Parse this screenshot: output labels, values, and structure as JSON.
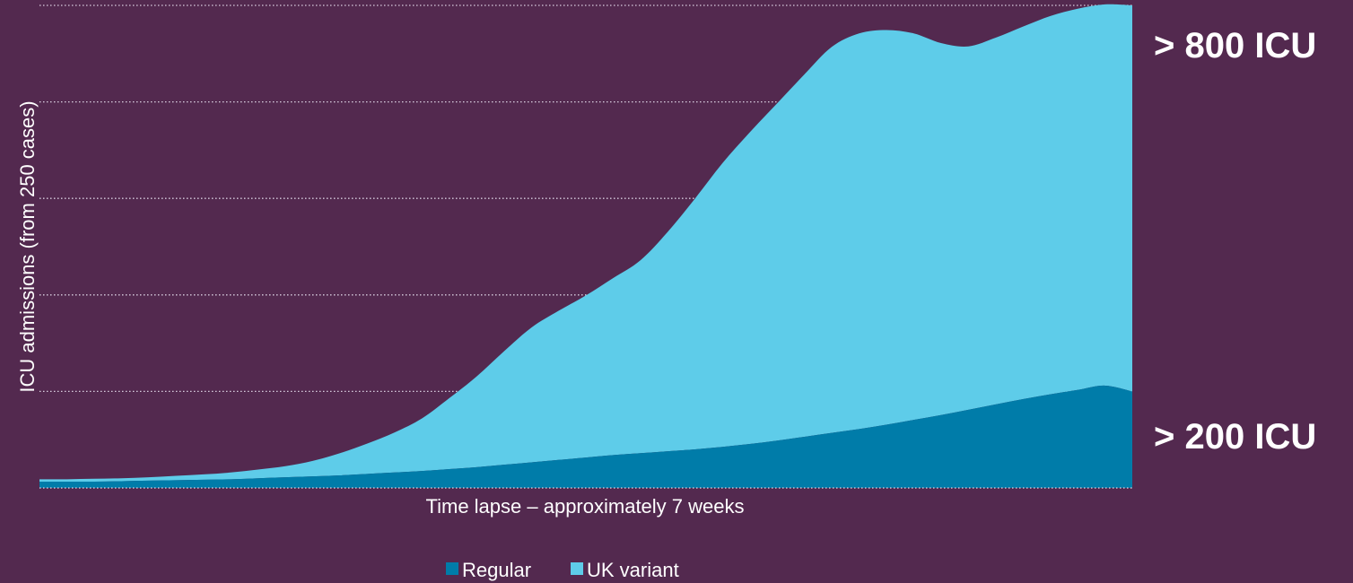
{
  "colors": {
    "background": "#53294f",
    "regular": "#007ca9",
    "uk_variant": "#5ecce9",
    "text": "#ffffff",
    "grid": "#d9cfe0"
  },
  "chart_data": {
    "type": "area",
    "stacked": true,
    "title": "",
    "xlabel": "Time lapse – approximately 7 weeks",
    "ylabel": "ICU admissions (from 250 cases)",
    "ylim": [
      0,
      1000
    ],
    "grid": true,
    "legend_position": "bottom",
    "x": [
      0,
      0.025,
      0.05,
      0.075,
      0.1,
      0.125,
      0.15,
      0.175,
      0.2,
      0.225,
      0.25,
      0.275,
      0.3,
      0.325,
      0.35,
      0.375,
      0.4,
      0.425,
      0.45,
      0.475,
      0.5,
      0.525,
      0.55,
      0.575,
      0.6,
      0.625,
      0.65,
      0.675,
      0.7,
      0.725,
      0.75,
      0.775,
      0.8,
      0.825,
      0.85,
      0.875,
      0.9,
      0.925,
      0.95,
      0.975,
      1
    ],
    "series": [
      {
        "name": "Regular",
        "color": "#007ca9",
        "values": [
          13,
          13,
          13,
          14,
          15,
          16,
          17,
          18,
          20,
          22,
          24,
          26,
          29,
          32,
          35,
          39,
          43,
          48,
          53,
          58,
          63,
          68,
          72,
          76,
          80,
          85,
          91,
          98,
          106,
          114,
          122,
          131,
          141,
          151,
          162,
          173,
          184,
          194,
          203,
          212,
          200
        ]
      },
      {
        "name": "UK variant",
        "color": "#5ecce9",
        "values": [
          5,
          5,
          6,
          6,
          7,
          9,
          11,
          14,
          18,
          23,
          32,
          46,
          63,
          83,
          109,
          147,
          188,
          235,
          279,
          309,
          336,
          367,
          400,
          455,
          520,
          588,
          646,
          699,
          751,
          800,
          820,
          818,
          801,
          771,
          753,
          760,
          772,
          784,
          790,
          790,
          800
        ]
      }
    ],
    "annotations": [
      {
        "text": "> 800 ICU"
      },
      {
        "text": "> 200 ICU"
      }
    ]
  },
  "legend": {
    "items": [
      {
        "label": "Regular",
        "color": "#007ca9"
      },
      {
        "label": "UK variant",
        "color": "#5ecce9"
      }
    ]
  }
}
